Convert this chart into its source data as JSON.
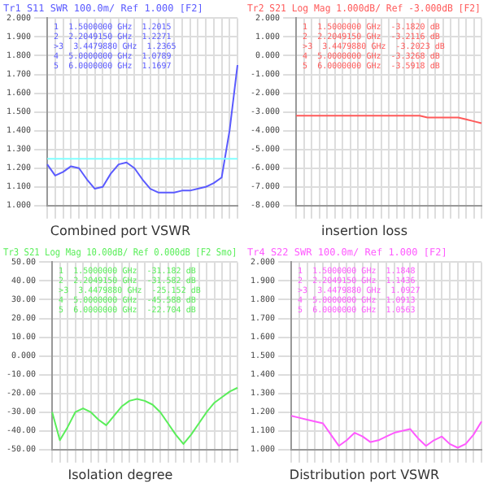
{
  "chart_data": [
    {
      "type": "line",
      "subtitle": "Tr1 S11 SWR 100.0m/ Ref 1.000 [F2]",
      "title": "Combined port VSWR",
      "categories": [
        null,
        null,
        null,
        null,
        null,
        null,
        null,
        null,
        null,
        null,
        null,
        null,
        null,
        null,
        null,
        null,
        null,
        null,
        null,
        null,
        null,
        null,
        null,
        null,
        null
      ],
      "series": [
        {
          "color": "#5a5aff",
          "values": [
            1.22,
            1.16,
            1.18,
            1.21,
            1.2,
            1.14,
            1.09,
            1.1,
            1.17,
            1.22,
            1.23,
            1.2,
            1.14,
            1.09,
            1.07,
            1.07,
            1.07,
            1.08,
            1.08,
            1.09,
            1.1,
            1.12,
            1.15,
            1.4,
            1.75
          ]
        }
      ],
      "ylim": [
        1,
        2
      ],
      "yticks": [
        {
          "value": 1,
          "label": "1.000"
        },
        {
          "value": 1.1,
          "label": "1.100"
        },
        {
          "value": 1.2,
          "label": "1.200"
        },
        {
          "value": 1.3,
          "label": "1.300"
        },
        {
          "value": 1.4,
          "label": "1.400"
        },
        {
          "value": 1.5,
          "label": "1.500"
        },
        {
          "value": 1.6,
          "label": "1.600"
        },
        {
          "value": 1.7,
          "label": "1.700"
        },
        {
          "value": 1.8,
          "label": "1.800"
        },
        {
          "value": 1.9,
          "label": "1.900"
        },
        {
          "value": 2,
          "label": "2.000"
        }
      ],
      "ref_lines": [
        {
          "axis": "y",
          "value": 1.25,
          "color": "#80ffff"
        }
      ],
      "grid": true,
      "tick_labels": "y",
      "annotations": [
        "1  1.5000000 GHz  1.2015",
        "2  2.2049150 GHz  1.2271",
        ">3  3.4479880 GHz  1.2365",
        "4  5.0000000 GHz  1.0789",
        "5  6.0000000 GHz  1.1697"
      ]
    },
    {
      "type": "line",
      "subtitle": "Tr2 S21 Log Mag 1.000dB/ Ref -3.000dB [F2]",
      "title": "insertion loss",
      "categories": [
        null,
        null,
        null,
        null,
        null,
        null,
        null,
        null,
        null,
        null,
        null,
        null,
        null,
        null,
        null,
        null,
        null,
        null,
        null,
        null,
        null,
        null,
        null,
        null,
        null
      ],
      "series": [
        {
          "color": "#ff5a5a",
          "values": [
            -3.2,
            -3.2,
            -3.2,
            -3.2,
            -3.2,
            -3.2,
            -3.2,
            -3.2,
            -3.2,
            -3.2,
            -3.2,
            -3.2,
            -3.2,
            -3.2,
            -3.2,
            -3.2,
            -3.2,
            -3.3,
            -3.3,
            -3.3,
            -3.3,
            -3.3,
            -3.4,
            -3.5,
            -3.6
          ]
        }
      ],
      "ylim": [
        -8,
        2
      ],
      "yticks": [
        {
          "value": -8,
          "label": "-8.000"
        },
        {
          "value": -7,
          "label": "-7.000"
        },
        {
          "value": -6,
          "label": "-6.000"
        },
        {
          "value": -5,
          "label": "-5.000"
        },
        {
          "value": -4,
          "label": "-4.000"
        },
        {
          "value": -3,
          "label": "-3.000"
        },
        {
          "value": -2,
          "label": "-2.000"
        },
        {
          "value": -1,
          "label": "-1.000"
        },
        {
          "value": 0,
          "label": "0.000"
        },
        {
          "value": 1,
          "label": "1.000"
        },
        {
          "value": 2,
          "label": "2.000"
        }
      ],
      "grid": true,
      "tick_labels": "y",
      "annotations": [
        "1  1.5000000 GHz  -3.1820 dB",
        "2  2.2049150 GHz  -3.2116 dB",
        ">3  3.4479880 GHz  -3.2023 dB",
        "4  5.0000000 GHz  -3.3268 dB",
        "5  6.0000000 GHz  -3.5918 dB"
      ]
    },
    {
      "type": "line",
      "subtitle": "Tr3 S21 Log Mag 10.00dB/ Ref 0.000dB [F2 Smo]",
      "title": "Isolation degree",
      "categories": [
        null,
        null,
        null,
        null,
        null,
        null,
        null,
        null,
        null,
        null,
        null,
        null,
        null,
        null,
        null,
        null,
        null,
        null,
        null,
        null,
        null,
        null,
        null,
        null,
        null
      ],
      "series": [
        {
          "color": "#5aee5a",
          "values": [
            -30,
            -45,
            -38,
            -30,
            -28,
            -30,
            -34,
            -37,
            -32,
            -27,
            -24,
            -23,
            -24,
            -26,
            -30,
            -36,
            -42,
            -47,
            -42,
            -36,
            -30,
            -25,
            -22,
            -19,
            -17
          ]
        }
      ],
      "ylim": [
        -50,
        50
      ],
      "yticks": [
        {
          "value": -50,
          "label": "-50.00"
        },
        {
          "value": -40,
          "label": "-40.00"
        },
        {
          "value": -30,
          "label": "-30.00"
        },
        {
          "value": -20,
          "label": "-20.00"
        },
        {
          "value": -10,
          "label": "-10.00"
        },
        {
          "value": 0,
          "label": "0.000"
        },
        {
          "value": 10,
          "label": "10.00"
        },
        {
          "value": 20,
          "label": "20.00"
        },
        {
          "value": 30,
          "label": "30.00"
        },
        {
          "value": 40,
          "label": "40.00"
        },
        {
          "value": 50,
          "label": "50.00"
        }
      ],
      "grid": true,
      "tick_labels": "y",
      "annotations": [
        "1  1.5000000 GHz  -31.182 dB",
        "2  2.2049150 GHz  -31.582 dB",
        ">3  3.4479880 GHz  -25.152 dB",
        "4  5.0000000 GHz  -45.588 dB",
        "5  6.0000000 GHz  -22.704 dB"
      ]
    },
    {
      "type": "line",
      "subtitle": "Tr4 S22 SWR 100.0m/ Ref 1.000 [F2]",
      "title": "Distribution port VSWR",
      "categories": [
        null,
        null,
        null,
        null,
        null,
        null,
        null,
        null,
        null,
        null,
        null,
        null,
        null,
        null,
        null,
        null,
        null,
        null,
        null,
        null,
        null,
        null,
        null,
        null,
        null
      ],
      "series": [
        {
          "color": "#ff5aff",
          "values": [
            1.18,
            1.17,
            1.16,
            1.15,
            1.14,
            1.08,
            1.02,
            1.05,
            1.09,
            1.07,
            1.04,
            1.05,
            1.07,
            1.09,
            1.1,
            1.11,
            1.06,
            1.02,
            1.05,
            1.07,
            1.03,
            1.01,
            1.03,
            1.08,
            1.15
          ]
        }
      ],
      "ylim": [
        1,
        2
      ],
      "yticks": [
        {
          "value": 1,
          "label": "1.000"
        },
        {
          "value": 1.1,
          "label": "1.100"
        },
        {
          "value": 1.2,
          "label": "1.200"
        },
        {
          "value": 1.3,
          "label": "1.300"
        },
        {
          "value": 1.4,
          "label": "1.400"
        },
        {
          "value": 1.5,
          "label": "1.500"
        },
        {
          "value": 1.6,
          "label": "1.600"
        },
        {
          "value": 1.7,
          "label": "1.700"
        },
        {
          "value": 1.8,
          "label": "1.800"
        },
        {
          "value": 1.9,
          "label": "1.900"
        },
        {
          "value": 2,
          "label": "2.000"
        }
      ],
      "grid": true,
      "tick_labels": "y",
      "annotations": [
        "1  1.5000000 GHz  1.1848",
        "2  2.2049150 GHz  1.1436",
        ">3  3.4479880 GHz  1.0927",
        "4  5.0000000 GHz  1.0913",
        "5  6.0000000 GHz  1.0563"
      ]
    }
  ]
}
